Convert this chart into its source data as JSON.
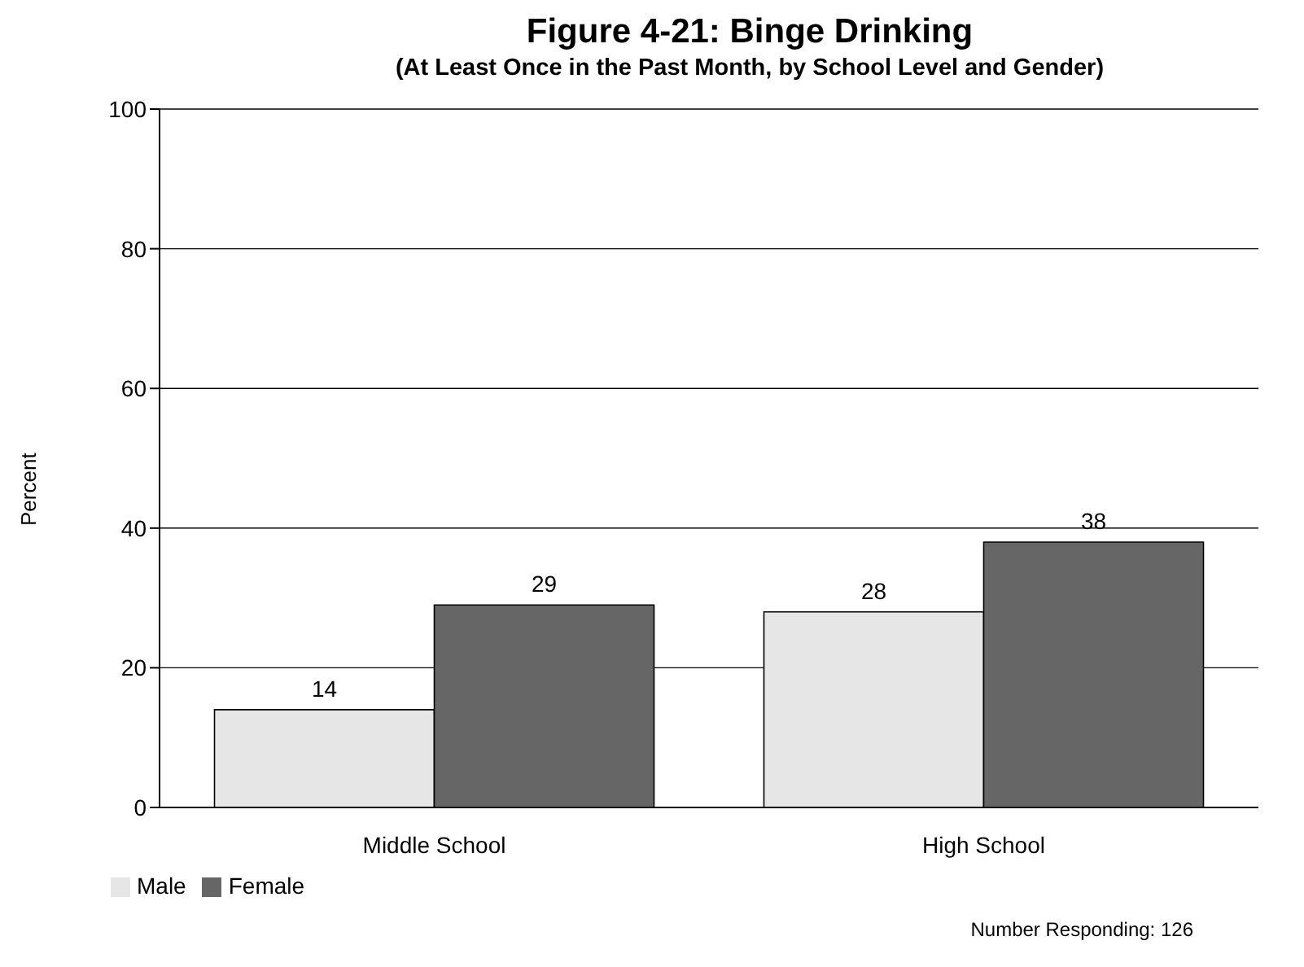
{
  "chart_data": {
    "type": "bar",
    "title": "Figure 4-21: Binge Drinking",
    "subtitle": "(At Least Once in the Past Month, by School Level and Gender)",
    "ylabel": "Percent",
    "categories": [
      "Middle School",
      "High School"
    ],
    "series": [
      {
        "name": "Male",
        "color": "#e6e6e6",
        "values": [
          14,
          28
        ]
      },
      {
        "name": "Female",
        "color": "#666666",
        "values": [
          29,
          38
        ]
      }
    ],
    "ylim": [
      0,
      100
    ],
    "yticks": [
      0,
      20,
      40,
      60,
      80,
      100
    ],
    "grid": "y",
    "legend": "bottom left",
    "data_labels": true,
    "annotations": [
      "Number Responding:  126"
    ]
  }
}
